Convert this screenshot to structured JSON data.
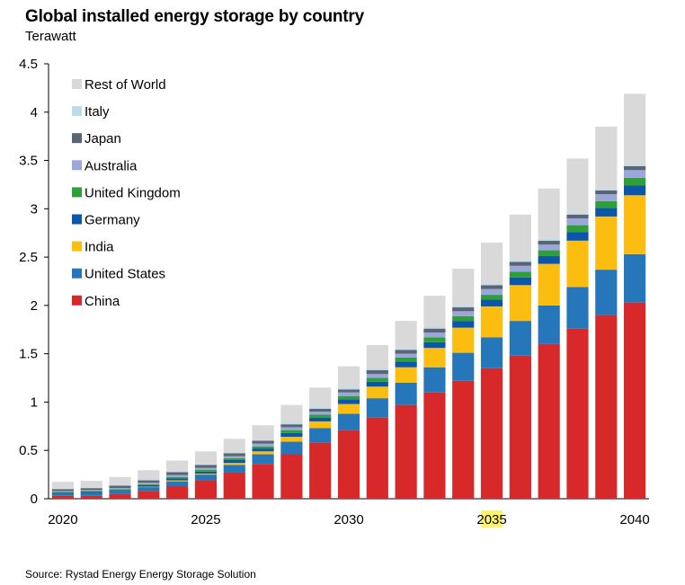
{
  "title": "Global installed energy storage by country",
  "subtitle": "Terawatt",
  "source": "Source: Rystad Energy Energy Storage Solution",
  "chart_data": {
    "type": "bar",
    "stacked": true,
    "ylim": [
      0,
      4.5
    ],
    "yticks": [
      "0",
      "0.5",
      "1",
      "1.5",
      "2",
      "2.5",
      "3",
      "3.5",
      "4",
      "4.5"
    ],
    "xticks": [
      "2020",
      "2025",
      "2030",
      "2035",
      "2040"
    ],
    "highlighted_tick": "2035",
    "grid": false,
    "legend_position": "top-left",
    "categories": [
      "2020",
      "2021",
      "2022",
      "2023",
      "2024",
      "2025",
      "2026",
      "2027",
      "2028",
      "2029",
      "2030",
      "2031",
      "2032",
      "2033",
      "2034",
      "2035",
      "2036",
      "2037",
      "2038",
      "2039",
      "2040"
    ],
    "series": [
      {
        "name": "China",
        "color": "#d7282a",
        "values": [
          0.03,
          0.03,
          0.05,
          0.08,
          0.13,
          0.19,
          0.27,
          0.36,
          0.46,
          0.58,
          0.71,
          0.84,
          0.97,
          1.1,
          1.22,
          1.35,
          1.48,
          1.6,
          1.76,
          1.9,
          2.03
        ]
      },
      {
        "name": "United States",
        "color": "#2577b9",
        "values": [
          0.02,
          0.03,
          0.03,
          0.04,
          0.05,
          0.06,
          0.08,
          0.1,
          0.13,
          0.15,
          0.17,
          0.2,
          0.23,
          0.26,
          0.29,
          0.32,
          0.36,
          0.4,
          0.43,
          0.47,
          0.5
        ]
      },
      {
        "name": "India",
        "color": "#fcbd11",
        "values": [
          0.0,
          0.0,
          0.0,
          0.005,
          0.01,
          0.01,
          0.02,
          0.03,
          0.05,
          0.07,
          0.1,
          0.12,
          0.16,
          0.2,
          0.26,
          0.32,
          0.37,
          0.43,
          0.48,
          0.55,
          0.61
        ]
      },
      {
        "name": "Germany",
        "color": "#0b56a8",
        "values": [
          0.01,
          0.01,
          0.01,
          0.015,
          0.02,
          0.02,
          0.03,
          0.03,
          0.04,
          0.04,
          0.05,
          0.05,
          0.06,
          0.06,
          0.07,
          0.07,
          0.08,
          0.08,
          0.09,
          0.09,
          0.1
        ]
      },
      {
        "name": "United Kingdom",
        "color": "#2fa037",
        "values": [
          0.01,
          0.01,
          0.01,
          0.01,
          0.015,
          0.02,
          0.02,
          0.02,
          0.03,
          0.03,
          0.03,
          0.04,
          0.04,
          0.05,
          0.05,
          0.05,
          0.06,
          0.06,
          0.07,
          0.07,
          0.08
        ]
      },
      {
        "name": "Australia",
        "color": "#9aa7d8",
        "values": [
          0.01,
          0.01,
          0.01,
          0.015,
          0.02,
          0.02,
          0.02,
          0.03,
          0.03,
          0.03,
          0.04,
          0.04,
          0.04,
          0.05,
          0.05,
          0.06,
          0.06,
          0.06,
          0.07,
          0.07,
          0.08
        ]
      },
      {
        "name": "Japan",
        "color": "#5a6472",
        "values": [
          0.02,
          0.02,
          0.025,
          0.025,
          0.03,
          0.03,
          0.03,
          0.03,
          0.03,
          0.03,
          0.03,
          0.04,
          0.04,
          0.04,
          0.04,
          0.04,
          0.04,
          0.04,
          0.04,
          0.04,
          0.04
        ]
      },
      {
        "name": "Italy",
        "color": "#bcdcec",
        "values": [
          0.005,
          0.005,
          0.01,
          0.01,
          0.01,
          0.01,
          0.01,
          0.01,
          0.02,
          0.02,
          0.02,
          0.02,
          0.02,
          0.02,
          0.02,
          0.02,
          0.02,
          0.02,
          0.02,
          0.02,
          0.02
        ]
      },
      {
        "name": "Rest of World",
        "color": "#d9d9d9",
        "values": [
          0.07,
          0.07,
          0.08,
          0.095,
          0.11,
          0.13,
          0.14,
          0.15,
          0.18,
          0.2,
          0.22,
          0.24,
          0.28,
          0.32,
          0.38,
          0.42,
          0.47,
          0.52,
          0.56,
          0.64,
          0.73
        ]
      }
    ]
  }
}
